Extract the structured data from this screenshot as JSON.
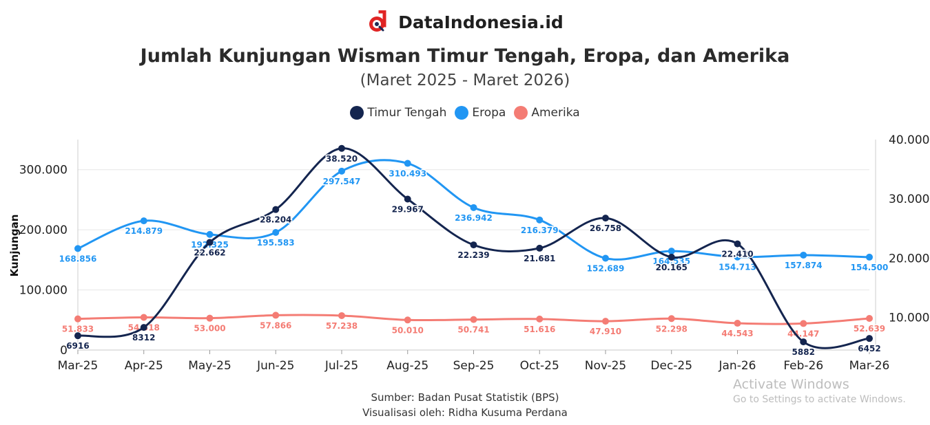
{
  "brand": {
    "name": "DataIndonesia.id"
  },
  "chart_data": {
    "type": "line",
    "title": "Jumlah Kunjungan Wisman Timur Tengah, Eropa, dan Amerika",
    "subtitle": "(Maret 2025 - Maret 2026)",
    "ylabel": "Kunjungan",
    "legend_position": "top-center",
    "grid": true,
    "categories": [
      "Mar-25",
      "Apr-25",
      "May-25",
      "Jun-25",
      "Jul-25",
      "Aug-25",
      "Sep-25",
      "Oct-25",
      "Nov-25",
      "Dec-25",
      "Jan-26",
      "Feb-26",
      "Mar-26"
    ],
    "y_left": {
      "min": 0,
      "max": 350000,
      "ticks": [
        0,
        100000,
        200000,
        300000
      ],
      "tick_labels": [
        "0",
        "100.000",
        "200.000",
        "300.000"
      ]
    },
    "y_right": {
      "min": 4500,
      "max": 40000,
      "ticks": [
        10000,
        20000,
        30000,
        40000
      ],
      "tick_labels": [
        "10.000",
        "20.000",
        "30.000",
        "40.000"
      ]
    },
    "series": [
      {
        "name": "Timur Tengah",
        "color": "#14254f",
        "axis": "right",
        "values": [
          6916,
          8312,
          22662,
          28204,
          38520,
          29967,
          22239,
          21681,
          26758,
          20165,
          22410,
          5882,
          6452
        ],
        "labels": [
          "6916",
          "8312",
          "22.662",
          "28.204",
          "38.520",
          "29.967",
          "22.239",
          "21.681",
          "26.758",
          "20.165",
          "22.410",
          "5882",
          "6452"
        ]
      },
      {
        "name": "Eropa",
        "color": "#2196f3",
        "axis": "left",
        "values": [
          168856,
          214879,
          192325,
          195583,
          297547,
          310493,
          236942,
          216379,
          152689,
          164535,
          154713,
          157874,
          154500
        ],
        "labels": [
          "168.856",
          "214.879",
          "192.325",
          "195.583",
          "297.547",
          "310.493",
          "236.942",
          "216.379",
          "152.689",
          "164.535",
          "154.713",
          "157.874",
          "154.500"
        ]
      },
      {
        "name": "Amerika",
        "color": "#f47c74",
        "axis": "left",
        "values": [
          51833,
          54318,
          53000,
          57866,
          57238,
          50010,
          50741,
          51616,
          47910,
          52298,
          44543,
          44147,
          52639
        ],
        "labels": [
          "51.833",
          "54.318",
          "53.000",
          "57.866",
          "57.238",
          "50.010",
          "50.741",
          "51.616",
          "47.910",
          "52.298",
          "44.543",
          "44.147",
          "52.639"
        ]
      }
    ]
  },
  "footer": {
    "source": "Sumber: Badan Pusat Statistik (BPS)",
    "credit": "Visualisasi oleh: Ridha Kusuma Perdana"
  },
  "watermark": {
    "line1": "Activate Windows",
    "line2": "Go to Settings to activate Windows."
  }
}
